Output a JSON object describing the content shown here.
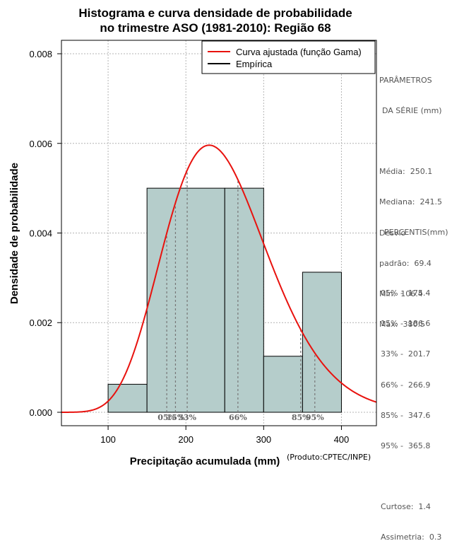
{
  "title_line1": "Histograma e curva densidade de probabilidade",
  "title_line2": "no trimestre ASO (1981-2010): Região 68",
  "produto": "(Produto:CPTEC/INPE)",
  "legend": {
    "fitted": "Curva ajustada (função Gama)",
    "empirical": "Empírica"
  },
  "stats_panel": {
    "heading1": "PARÂMETROS",
    "heading2": "DA SÉRIE (mm)",
    "media": "Média:  250.1",
    "mediana": "Mediana:  241.5",
    "desvio1": "Desvio",
    "desvio2": "padrão:  69.4",
    "min": "Mín:  106.4",
    "max": "Máx:  380.5"
  },
  "percentile_panel": {
    "heading": "PERCENTIS(mm)",
    "p05": "05% -  175.4",
    "p15": "15% -  186.6",
    "p33": "33% -  201.7",
    "p66": "66% -  266.9",
    "p85": "85% -  347.6",
    "p95": "95% -  365.8",
    "curtose": "Curtose:  1.4",
    "assimetria": "Assimetria:  0.3"
  },
  "colors": {
    "bar_fill": "#b5cdcb",
    "curve": "#e8120e",
    "grid": "#b4b4b4",
    "percentile_line": "#777777"
  },
  "chart_data": {
    "type": "bar",
    "title": "Histograma e curva densidade de probabilidade no trimestre ASO (1981-2010): Região 68",
    "xlabel": "Precipitação acumulada (mm)",
    "ylabel": "Densidade de probabilidade",
    "xlim": [
      40,
      445
    ],
    "ylim": [
      -0.0003,
      0.0083
    ],
    "xticks": [
      100,
      200,
      300,
      400
    ],
    "yticks": [
      0.0,
      0.002,
      0.004,
      0.006,
      0.008
    ],
    "xtick_labels": [
      "100",
      "200",
      "300",
      "400"
    ],
    "ytick_labels": [
      "0.000",
      "0.002",
      "0.004",
      "0.006",
      "0.008"
    ],
    "grid": true,
    "histogram": {
      "bins": [
        [
          100,
          150
        ],
        [
          150,
          250
        ],
        [
          250,
          300
        ],
        [
          300,
          350
        ],
        [
          350,
          400
        ]
      ],
      "density": [
        0.000625,
        0.005,
        0.005,
        0.00125,
        0.003125
      ]
    },
    "gamma_fit": {
      "mean": 250.1,
      "sd": 69.4,
      "peak_x": 230,
      "peak_density": 0.00596
    },
    "percentiles": [
      {
        "label": "05%",
        "value": 175.4
      },
      {
        "label": "15%",
        "value": 186.6
      },
      {
        "label": "33%",
        "value": 201.7
      },
      {
        "label": "66%",
        "value": 266.9
      },
      {
        "label": "85%",
        "value": 347.6
      },
      {
        "label": "95%",
        "value": 365.8
      }
    ],
    "legend_position": "top-right"
  }
}
